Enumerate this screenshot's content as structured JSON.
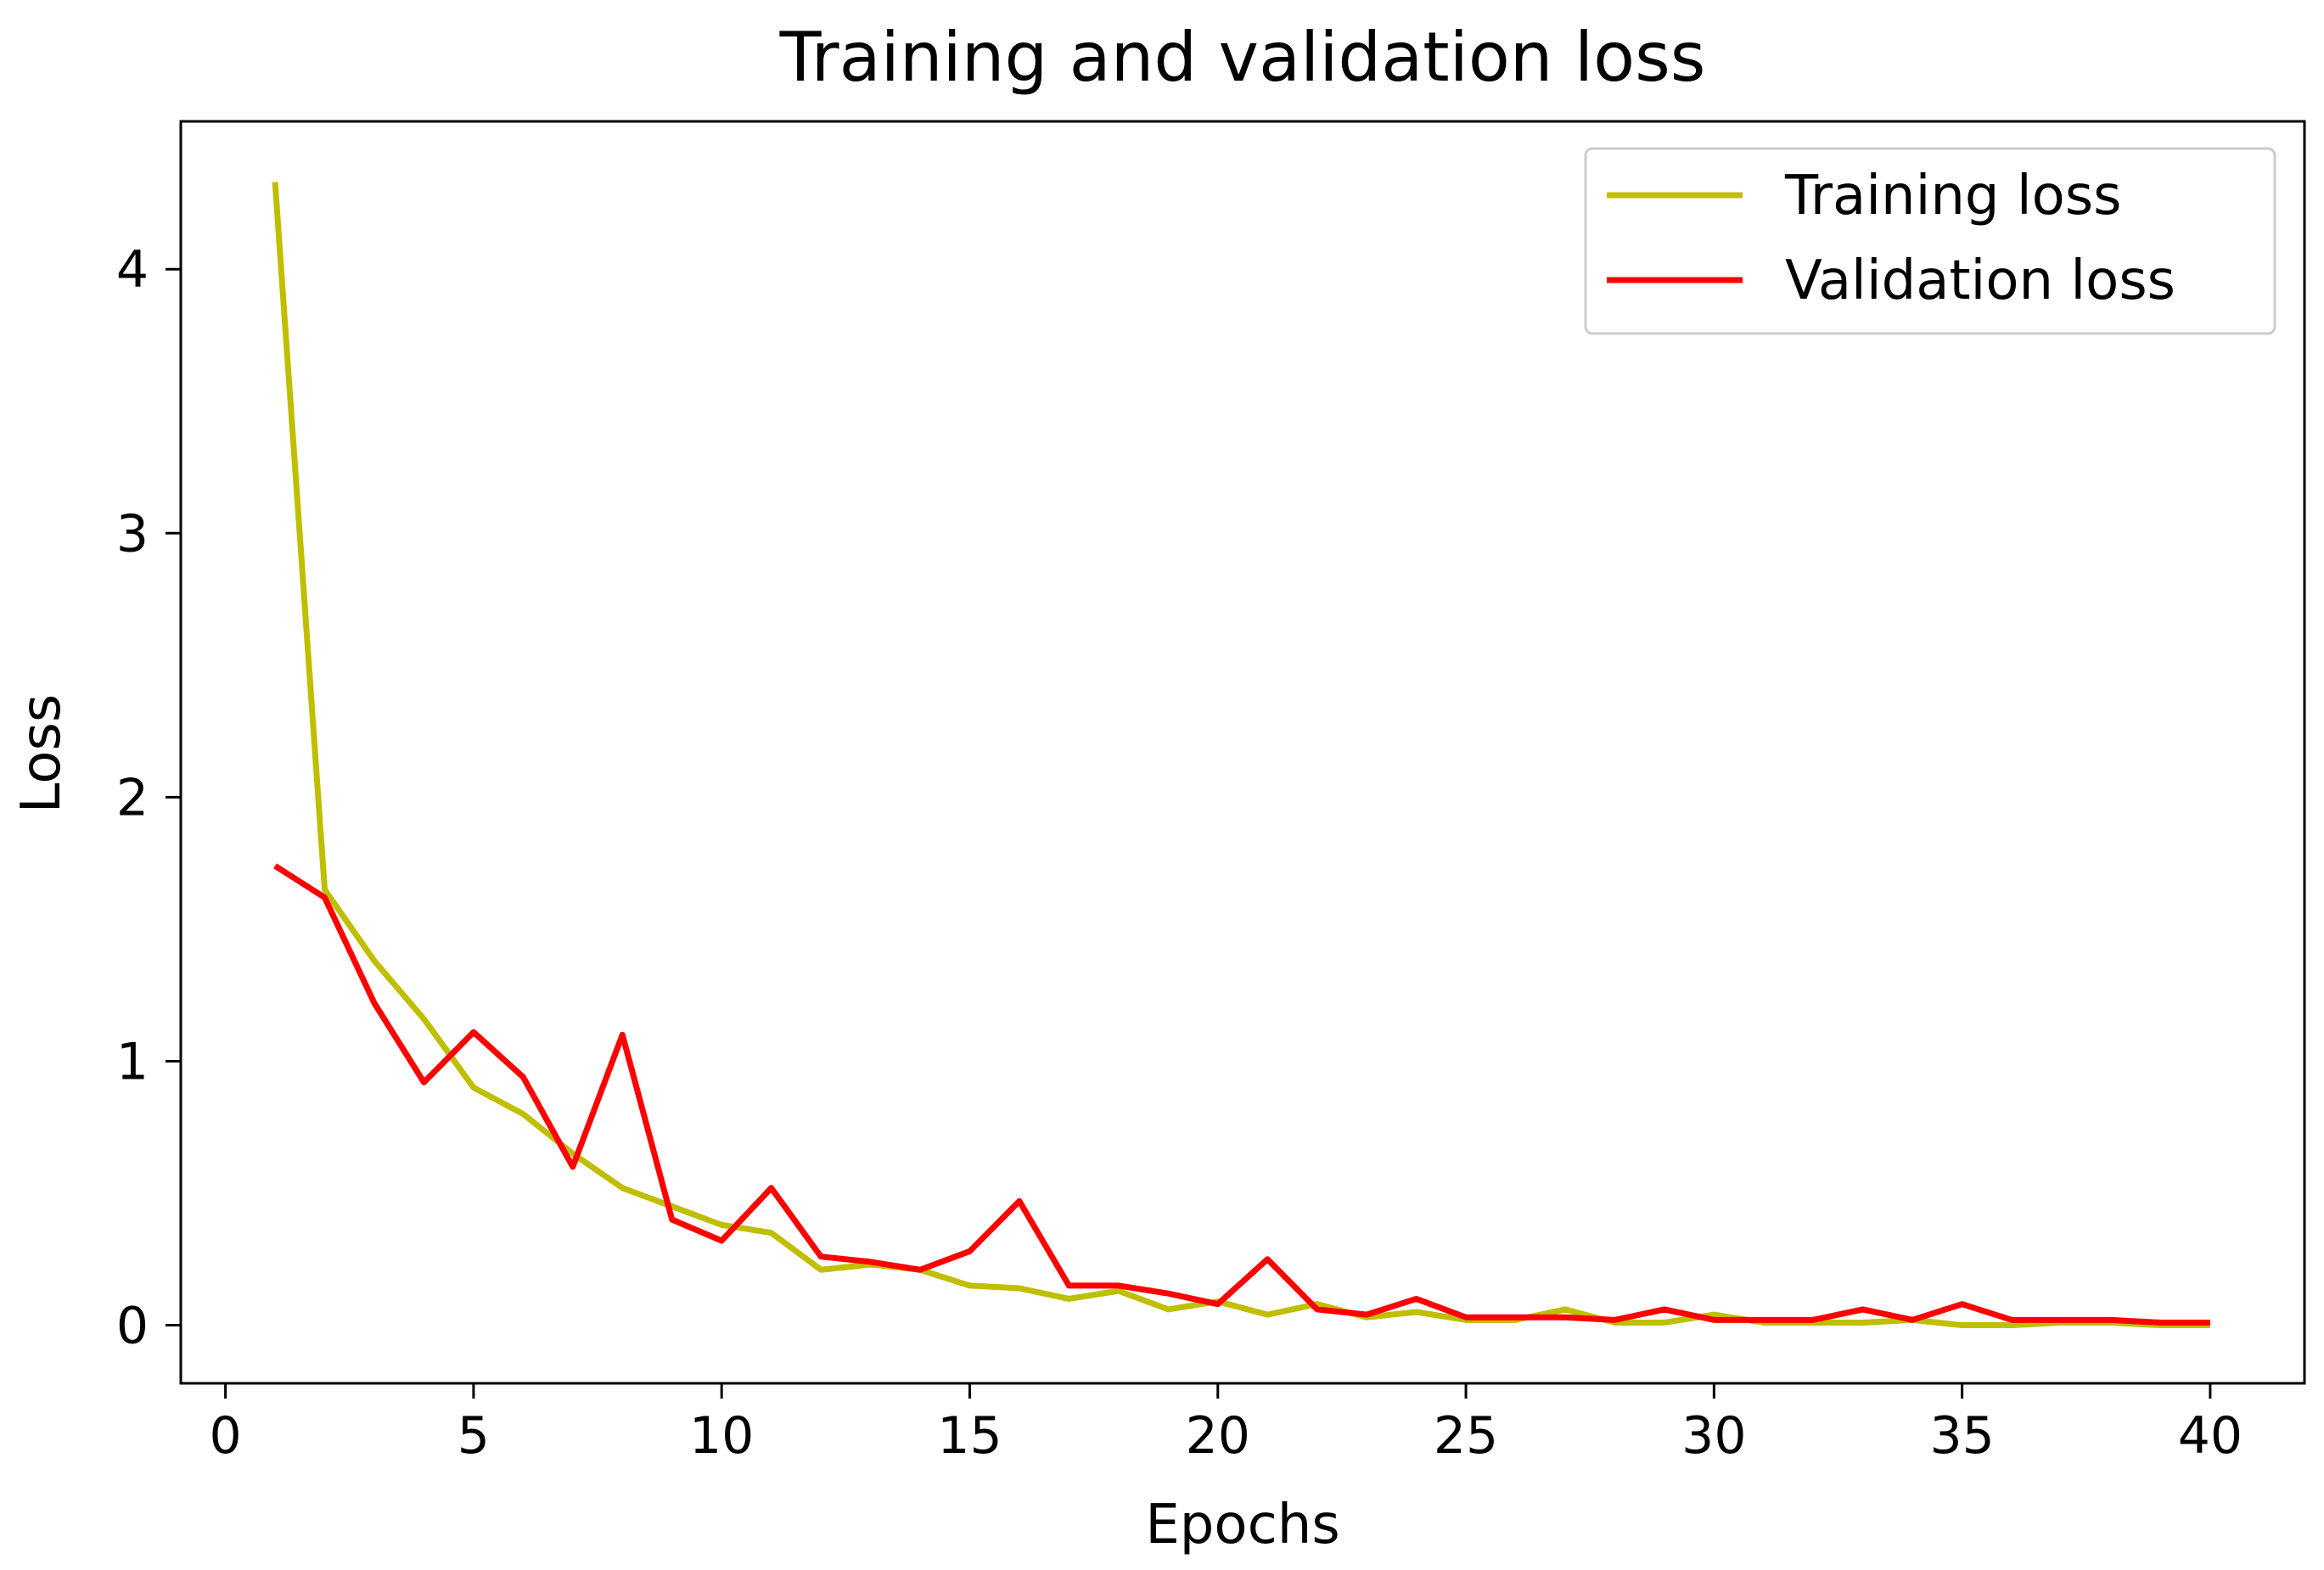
{
  "chart_data": {
    "type": "line",
    "title": "Training and validation loss",
    "xlabel": "Epochs",
    "ylabel": "Loss",
    "xlim": [
      -0.9,
      41.9
    ],
    "ylim": [
      -0.22,
      4.56
    ],
    "xticks": [
      0,
      5,
      10,
      15,
      20,
      25,
      30,
      35,
      40
    ],
    "yticks": [
      0,
      1,
      2,
      3,
      4
    ],
    "grid": false,
    "legend_position": "top-right",
    "x": [
      1,
      2,
      3,
      4,
      5,
      6,
      7,
      8,
      9,
      10,
      11,
      12,
      13,
      14,
      15,
      16,
      17,
      18,
      19,
      20,
      21,
      22,
      23,
      24,
      25,
      26,
      27,
      28,
      29,
      30,
      31,
      32,
      33,
      34,
      35,
      36,
      37,
      38,
      39,
      40
    ],
    "series": [
      {
        "name": "Training loss",
        "color": "#bfbf00",
        "values": [
          4.33,
          1.65,
          1.38,
          1.16,
          0.9,
          0.8,
          0.65,
          0.52,
          0.45,
          0.38,
          0.35,
          0.21,
          0.23,
          0.21,
          0.15,
          0.14,
          0.1,
          0.13,
          0.06,
          0.09,
          0.04,
          0.08,
          0.03,
          0.05,
          0.02,
          0.02,
          0.06,
          0.01,
          0.01,
          0.04,
          0.01,
          0.01,
          0.01,
          0.02,
          0.0,
          0.0,
          0.01,
          0.01,
          0.0,
          0.0
        ]
      },
      {
        "name": "Validation loss",
        "color": "#ff0000",
        "values": [
          1.74,
          1.62,
          1.22,
          0.92,
          1.11,
          0.94,
          0.6,
          1.1,
          0.4,
          0.32,
          0.52,
          0.26,
          0.24,
          0.21,
          0.28,
          0.47,
          0.15,
          0.15,
          0.12,
          0.08,
          0.25,
          0.06,
          0.04,
          0.1,
          0.03,
          0.03,
          0.03,
          0.02,
          0.06,
          0.02,
          0.02,
          0.02,
          0.06,
          0.02,
          0.08,
          0.02,
          0.02,
          0.02,
          0.01,
          0.01
        ]
      }
    ]
  }
}
